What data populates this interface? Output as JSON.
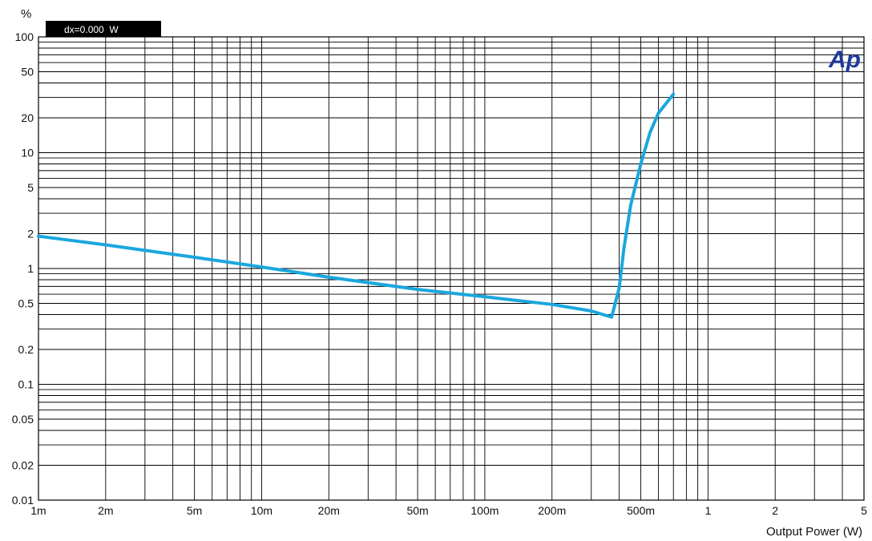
{
  "chart_data": {
    "type": "line",
    "title": "",
    "xlabel": "Output Power (W)",
    "ylabel": "%",
    "x_scale": "log",
    "y_scale": "log",
    "xlim": [
      0.001,
      5
    ],
    "ylim": [
      0.01,
      100
    ],
    "grid": true,
    "cursor_readout": "dx=0.000  W",
    "logo_text": "Ap",
    "line_color": "#1aa7dd",
    "x_ticks": [
      {
        "value": 0.001,
        "label": "1m"
      },
      {
        "value": 0.002,
        "label": "2m"
      },
      {
        "value": 0.005,
        "label": "5m"
      },
      {
        "value": 0.01,
        "label": "10m"
      },
      {
        "value": 0.02,
        "label": "20m"
      },
      {
        "value": 0.05,
        "label": "50m"
      },
      {
        "value": 0.1,
        "label": "100m"
      },
      {
        "value": 0.2,
        "label": "200m"
      },
      {
        "value": 0.5,
        "label": "500m"
      },
      {
        "value": 1,
        "label": "1"
      },
      {
        "value": 2,
        "label": "2"
      },
      {
        "value": 5,
        "label": "5"
      }
    ],
    "y_ticks": [
      {
        "value": 0.01,
        "label": "0.01"
      },
      {
        "value": 0.02,
        "label": "0.02"
      },
      {
        "value": 0.05,
        "label": "0.05"
      },
      {
        "value": 0.1,
        "label": "0.1"
      },
      {
        "value": 0.2,
        "label": "0.2"
      },
      {
        "value": 0.5,
        "label": "0.5"
      },
      {
        "value": 1,
        "label": "1"
      },
      {
        "value": 2,
        "label": "2"
      },
      {
        "value": 5,
        "label": "5"
      },
      {
        "value": 10,
        "label": "10"
      },
      {
        "value": 20,
        "label": "20"
      },
      {
        "value": 50,
        "label": "50"
      },
      {
        "value": 100,
        "label": "100"
      }
    ],
    "series": [
      {
        "points": [
          {
            "x": 0.001,
            "y": 1.9
          },
          {
            "x": 0.002,
            "y": 1.6
          },
          {
            "x": 0.005,
            "y": 1.25
          },
          {
            "x": 0.01,
            "y": 1.03
          },
          {
            "x": 0.02,
            "y": 0.84
          },
          {
            "x": 0.05,
            "y": 0.66
          },
          {
            "x": 0.1,
            "y": 0.57
          },
          {
            "x": 0.2,
            "y": 0.49
          },
          {
            "x": 0.3,
            "y": 0.43
          },
          {
            "x": 0.37,
            "y": 0.38
          },
          {
            "x": 0.4,
            "y": 0.68
          },
          {
            "x": 0.42,
            "y": 1.5
          },
          {
            "x": 0.45,
            "y": 3.5
          },
          {
            "x": 0.5,
            "y": 8
          },
          {
            "x": 0.55,
            "y": 15
          },
          {
            "x": 0.6,
            "y": 22
          },
          {
            "x": 0.7,
            "y": 32
          }
        ]
      }
    ]
  }
}
